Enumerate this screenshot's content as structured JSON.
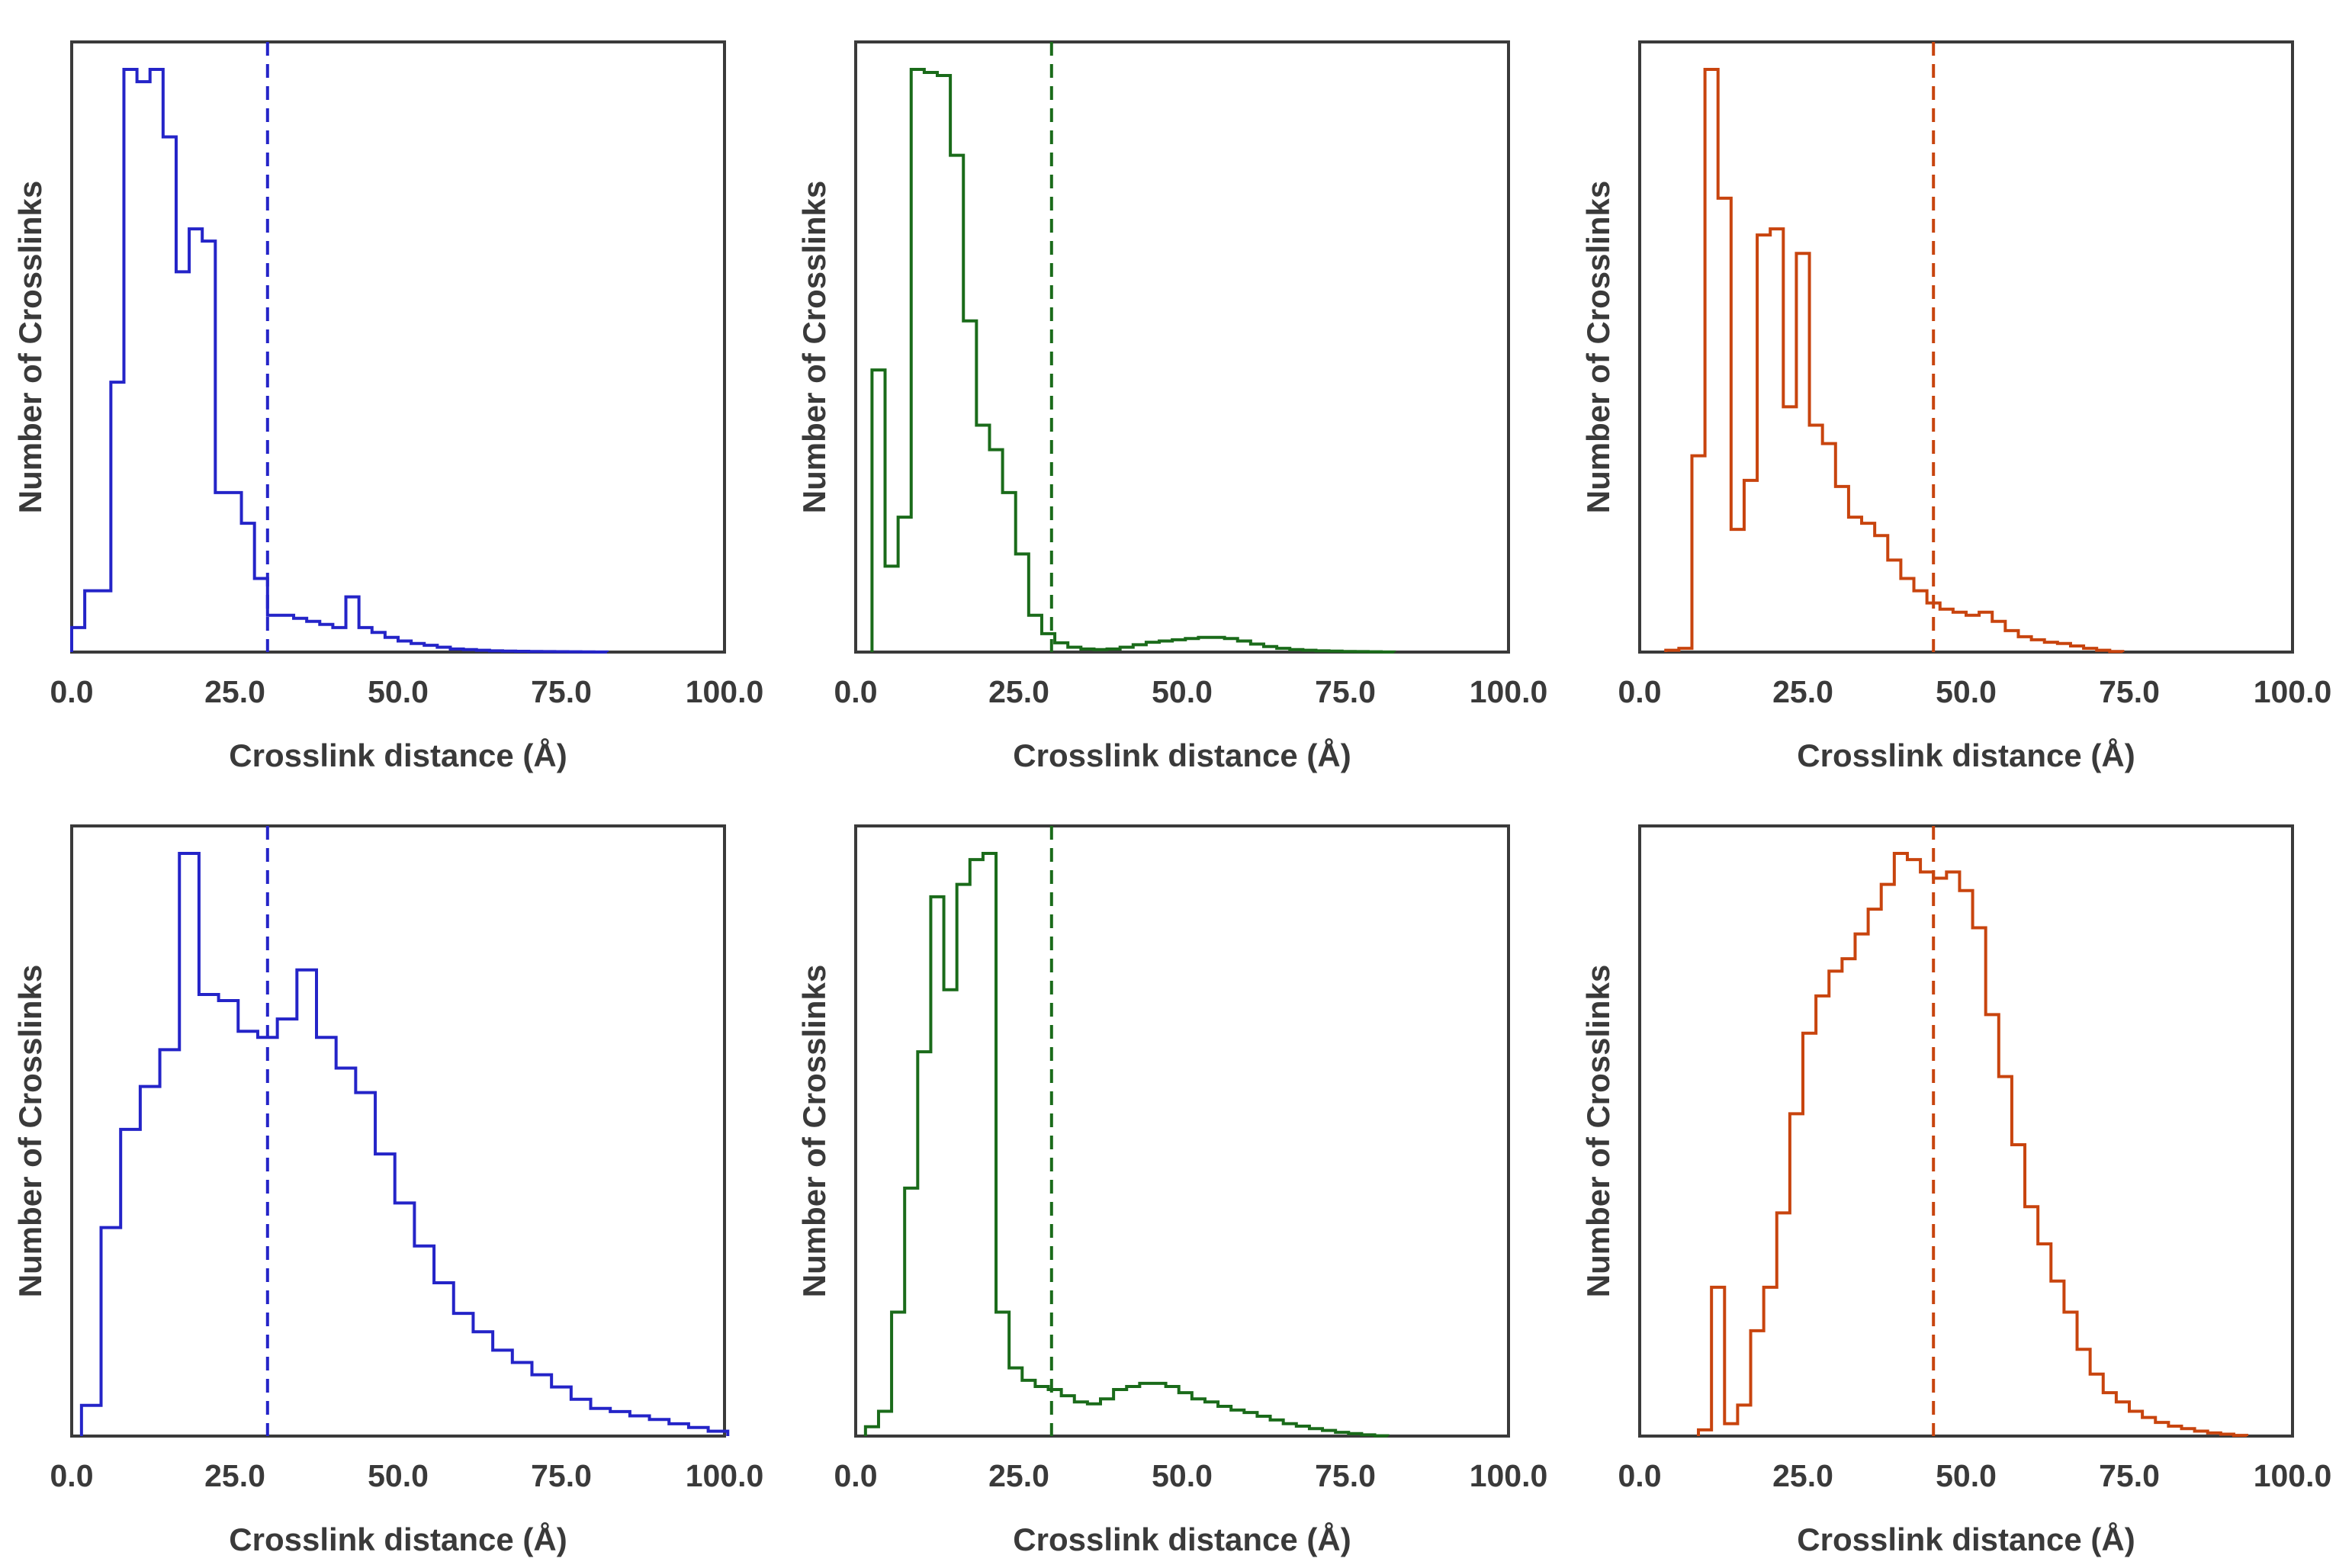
{
  "chart_data": [
    {
      "type": "histogram",
      "panel": "row1-col1",
      "xlabel": "Crosslink distance (Å)",
      "ylabel": "Number of Crosslinks",
      "xlim": [
        0,
        100
      ],
      "xticks": [
        "0.0",
        "25.0",
        "50.0",
        "75.0",
        "100.0"
      ],
      "yticks_shown": false,
      "color": "#2424c8",
      "threshold": 30,
      "x": [
        1,
        3,
        5,
        7,
        9,
        11,
        13,
        15,
        17,
        19,
        21,
        23,
        25,
        27,
        29,
        31,
        33,
        35,
        37,
        39,
        41,
        43,
        45,
        47,
        49,
        51,
        53,
        55,
        57,
        59,
        61,
        63,
        65,
        67,
        69,
        71,
        73,
        75,
        77,
        79,
        81
      ],
      "values": [
        4,
        10,
        10,
        44,
        95,
        93,
        95,
        84,
        62,
        69,
        67,
        26,
        26,
        21,
        12,
        6,
        6,
        5.5,
        5,
        4.5,
        4,
        9,
        4,
        3.2,
        2.4,
        1.8,
        1.4,
        1.1,
        0.8,
        0.5,
        0.4,
        0.3,
        0.2,
        0.15,
        0.12,
        0.1,
        0.08,
        0.06,
        0.05,
        0.03,
        0.01
      ]
    },
    {
      "type": "histogram",
      "panel": "row1-col2",
      "xlabel": "Crosslink distance (Å)",
      "ylabel": "Number of Crosslinks",
      "xlim": [
        0,
        100
      ],
      "xticks": [
        "0.0",
        "25.0",
        "50.0",
        "75.0",
        "100.0"
      ],
      "yticks_shown": false,
      "color": "#1a6b1a",
      "threshold": 30,
      "x": [
        3.5,
        5.5,
        7.5,
        9.5,
        11.5,
        13.5,
        15.5,
        17.5,
        19.5,
        21.5,
        23.5,
        25.5,
        27.5,
        29.5,
        31.5,
        33.5,
        35.5,
        37.5,
        39.5,
        41.5,
        43.5,
        45.5,
        47.5,
        49.5,
        51.5,
        53.5,
        55.5,
        57.5,
        59.5,
        61.5,
        63.5,
        65.5,
        67.5,
        69.5,
        71.5,
        73.5,
        75.5,
        77.5,
        79.5,
        81.5
      ],
      "values": [
        46,
        14,
        22,
        95,
        94.5,
        94,
        81,
        54,
        37,
        33,
        26,
        16,
        6,
        3,
        1.5,
        0.8,
        0.5,
        0.4,
        0.5,
        0.8,
        1.2,
        1.6,
        1.8,
        2.0,
        2.2,
        2.4,
        2.4,
        2.2,
        1.8,
        1.3,
        0.9,
        0.6,
        0.4,
        0.3,
        0.2,
        0.15,
        0.1,
        0.08,
        0.05,
        0.02
      ]
    },
    {
      "type": "histogram",
      "panel": "row1-col3",
      "xlabel": "Crosslink distance (Å)",
      "ylabel": "Number of Crosslinks",
      "xlim": [
        0,
        100
      ],
      "xticks": [
        "0.0",
        "25.0",
        "50.0",
        "75.0",
        "100.0"
      ],
      "yticks_shown": false,
      "color": "#c8440e",
      "threshold": 45,
      "x": [
        5,
        7,
        9,
        11,
        13,
        15,
        17,
        19,
        21,
        23,
        25,
        27,
        29,
        31,
        33,
        35,
        37,
        39,
        41,
        43,
        45,
        47,
        49,
        51,
        53,
        55,
        57,
        59,
        61,
        63,
        65,
        67,
        69,
        71,
        73
      ],
      "values": [
        0.3,
        0.6,
        32,
        95,
        74,
        20,
        28,
        68,
        69,
        40,
        65,
        37,
        34,
        27,
        22,
        21,
        19,
        15,
        12,
        10,
        8,
        7,
        6.5,
        6,
        6.5,
        5,
        3.5,
        2.5,
        2.0,
        1.6,
        1.4,
        1.0,
        0.6,
        0.3,
        0.1
      ]
    },
    {
      "type": "histogram",
      "panel": "row2-col1",
      "xlabel": "Crosslink distance (Å)",
      "ylabel": "Number of Crosslinks",
      "xlim": [
        0,
        100
      ],
      "xticks": [
        "0.0",
        "25.0",
        "50.0",
        "75.0",
        "100.0"
      ],
      "yticks_shown": false,
      "color": "#2424c8",
      "threshold": 30,
      "x": [
        3,
        6,
        9,
        12,
        15,
        18,
        21,
        24,
        27,
        30,
        33,
        36,
        39,
        42,
        45,
        48,
        51,
        54,
        57,
        60,
        63,
        66,
        69,
        72,
        75,
        78,
        81,
        84,
        87,
        90,
        93,
        96,
        99
      ],
      "values": [
        5,
        34,
        50,
        57,
        63,
        95,
        72,
        71,
        66,
        65,
        68,
        76,
        65,
        60,
        56,
        46,
        38,
        31,
        25,
        20,
        17,
        14,
        12,
        10,
        8,
        6,
        4.5,
        4,
        3.3,
        2.7,
        2.0,
        1.4,
        0.8
      ]
    },
    {
      "type": "histogram",
      "panel": "row2-col2",
      "xlabel": "Crosslink distance (Å)",
      "ylabel": "Number of Crosslinks",
      "xlim": [
        0,
        100
      ],
      "xticks": [
        "0.0",
        "25.0",
        "50.0",
        "75.0",
        "100.0"
      ],
      "yticks_shown": false,
      "color": "#1a6b1a",
      "threshold": 30,
      "x": [
        2.5,
        4.5,
        6.5,
        8.5,
        10.5,
        12.5,
        14.5,
        16.5,
        18.5,
        20.5,
        22.5,
        24.5,
        26.5,
        28.5,
        30.5,
        32.5,
        34.5,
        36.5,
        38.5,
        40.5,
        42.5,
        44.5,
        46.5,
        48.5,
        50.5,
        52.5,
        54.5,
        56.5,
        58.5,
        60.5,
        62.5,
        64.5,
        66.5,
        68.5,
        70.5,
        72.5,
        74.5,
        76.5,
        78.5,
        80.5
      ],
      "values": [
        1.5,
        4,
        20,
        40,
        62,
        87,
        72,
        89,
        93,
        94,
        20,
        11,
        9,
        8,
        7.5,
        6.5,
        5.5,
        5.2,
        6,
        7.5,
        8,
        8.5,
        8.5,
        8,
        7,
        6,
        5.5,
        4.8,
        4.2,
        3.8,
        3.2,
        2.6,
        2.0,
        1.6,
        1.2,
        0.9,
        0.6,
        0.4,
        0.2,
        0.05
      ]
    },
    {
      "type": "histogram",
      "panel": "row2-col3",
      "xlabel": "Crosslink distance (Å)",
      "ylabel": "Number of Crosslinks",
      "xlim": [
        0,
        100
      ],
      "xticks": [
        "0.0",
        "25.0",
        "50.0",
        "75.0",
        "100.0"
      ],
      "yticks_shown": false,
      "color": "#c8440e",
      "threshold": 45,
      "x": [
        10,
        12,
        14,
        16,
        18,
        20,
        22,
        24,
        26,
        28,
        30,
        32,
        34,
        36,
        38,
        40,
        42,
        44,
        46,
        48,
        50,
        52,
        54,
        56,
        58,
        60,
        62,
        64,
        66,
        68,
        70,
        72,
        74,
        76,
        78,
        80,
        82,
        84,
        86,
        88,
        90,
        92
      ],
      "values": [
        1,
        24,
        2,
        5,
        17,
        24,
        36,
        52,
        65,
        71,
        75,
        77,
        81,
        85,
        89,
        94,
        93,
        91,
        90,
        91,
        88,
        82,
        68,
        58,
        47,
        37,
        31,
        25,
        20,
        14,
        10,
        7,
        5.5,
        4,
        3,
        2.2,
        1.6,
        1.2,
        0.8,
        0.5,
        0.3,
        0.1
      ]
    }
  ]
}
